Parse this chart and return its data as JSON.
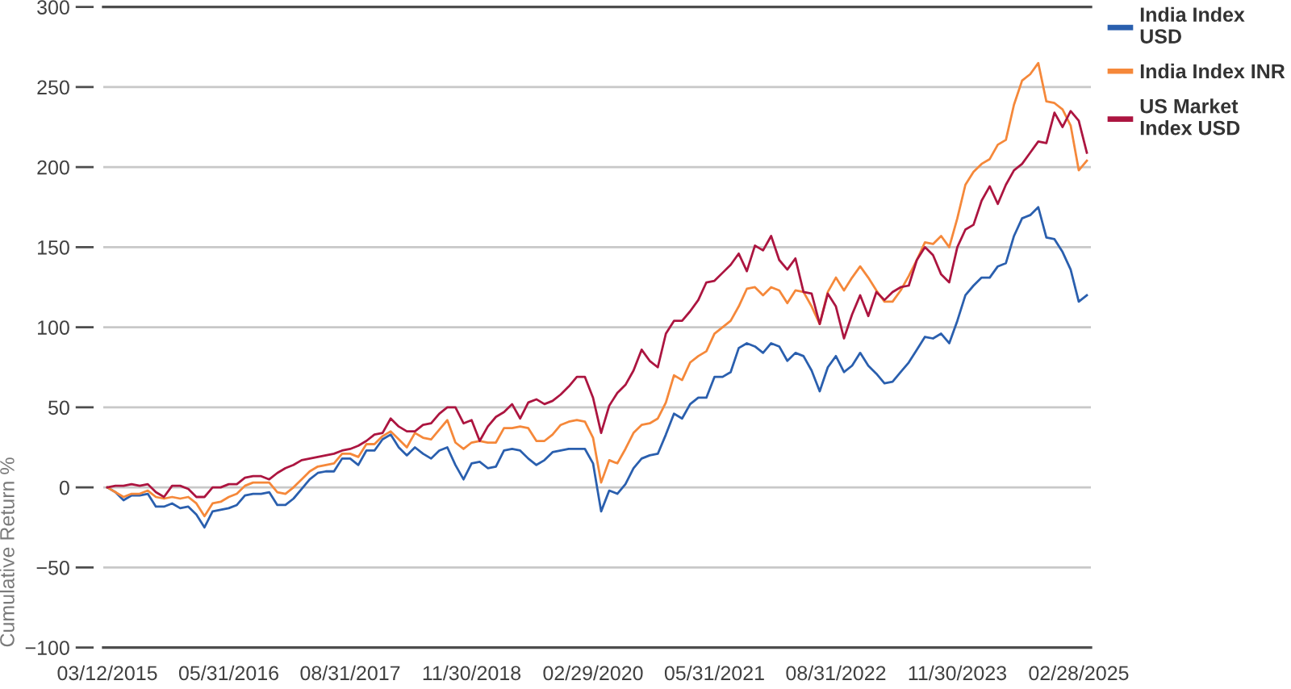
{
  "chart_data": {
    "type": "line",
    "ylabel": "Cumulative Return %",
    "categories": [
      "03/12/2015",
      null,
      null,
      null,
      null,
      null,
      null,
      null,
      null,
      null,
      null,
      null,
      null,
      null,
      null,
      "05/31/2016",
      null,
      null,
      null,
      null,
      null,
      null,
      null,
      null,
      null,
      null,
      null,
      null,
      null,
      null,
      "08/31/2017",
      null,
      null,
      null,
      null,
      null,
      null,
      null,
      null,
      null,
      null,
      null,
      null,
      null,
      null,
      "11/30/2018",
      null,
      null,
      null,
      null,
      null,
      null,
      null,
      null,
      null,
      null,
      null,
      null,
      null,
      null,
      "02/29/2020",
      null,
      null,
      null,
      null,
      null,
      null,
      null,
      null,
      null,
      null,
      null,
      null,
      null,
      null,
      "05/31/2021",
      null,
      null,
      null,
      null,
      null,
      null,
      null,
      null,
      null,
      null,
      null,
      null,
      null,
      null,
      "08/31/2022",
      null,
      null,
      null,
      null,
      null,
      null,
      null,
      null,
      null,
      null,
      null,
      null,
      null,
      null,
      "11/30/2023",
      null,
      null,
      null,
      null,
      null,
      null,
      null,
      null,
      null,
      null,
      null,
      null,
      null,
      null,
      "02/28/2025",
      null
    ],
    "ylim": [
      -100,
      300
    ],
    "yticks": [
      {
        "value": -100,
        "label": "−100"
      },
      {
        "value": -50,
        "label": "−50"
      },
      0,
      50,
      100,
      150,
      200,
      250,
      300
    ],
    "grid": "y",
    "legend": "top right",
    "series": [
      {
        "name": "India Index USD",
        "color": "#2a5fae",
        "values": [
          0,
          -3,
          -8,
          -5,
          -5,
          -4,
          -12,
          -12,
          -10,
          -13,
          -12,
          -17,
          -25,
          -15,
          -14,
          -13,
          -11,
          -5,
          -4,
          -4,
          -3,
          -11,
          -11,
          -7,
          -1,
          5,
          9,
          10,
          10,
          18,
          18,
          14,
          23,
          23,
          30,
          33,
          25,
          20,
          25,
          21,
          18,
          23,
          25,
          14,
          5,
          15,
          16,
          12,
          13,
          23,
          24,
          23,
          18,
          14,
          17,
          22,
          23,
          24,
          24,
          24,
          15,
          -15,
          -2,
          -4,
          2,
          12,
          18,
          20,
          21,
          33,
          46,
          43,
          52,
          56,
          56,
          69,
          69,
          72,
          87,
          90,
          88,
          84,
          90,
          88,
          79,
          84,
          82,
          73,
          60,
          75,
          82,
          72,
          76,
          84,
          76,
          71,
          65,
          66,
          72,
          78,
          86,
          94,
          93,
          96,
          90,
          104,
          120,
          126,
          131,
          131,
          138,
          140,
          157,
          168,
          170,
          175,
          156,
          155,
          147,
          136,
          116,
          120
        ]
      },
      {
        "name": "India Index INR",
        "color": "#f5883a",
        "values": [
          0,
          -3,
          -6,
          -4,
          -4,
          -2,
          -6,
          -7,
          -6,
          -7,
          -6,
          -10,
          -18,
          -10,
          -9,
          -6,
          -4,
          1,
          3,
          3,
          3,
          -3,
          -4,
          0,
          5,
          10,
          13,
          14,
          15,
          21,
          21,
          19,
          27,
          27,
          32,
          35,
          30,
          25,
          34,
          31,
          30,
          36,
          42,
          28,
          24,
          28,
          29,
          28,
          28,
          37,
          37,
          38,
          37,
          29,
          29,
          33,
          39,
          41,
          42,
          41,
          31,
          3,
          17,
          15,
          24,
          34,
          39,
          40,
          43,
          53,
          70,
          67,
          78,
          82,
          85,
          96,
          100,
          104,
          113,
          124,
          125,
          120,
          125,
          123,
          115,
          123,
          122,
          113,
          102,
          122,
          131,
          123,
          131,
          138,
          131,
          123,
          116,
          116,
          123,
          132,
          142,
          153,
          152,
          157,
          150,
          168,
          189,
          197,
          202,
          205,
          214,
          217,
          239,
          254,
          258,
          265,
          241,
          240,
          236,
          226,
          198,
          204
        ]
      },
      {
        "name": "US Market Index USD",
        "color": "#ac1540",
        "values": [
          0,
          1,
          1,
          2,
          1,
          2,
          -3,
          -6,
          1,
          1,
          -1,
          -6,
          -6,
          0,
          0,
          2,
          2,
          6,
          7,
          7,
          5,
          9,
          12,
          14,
          17,
          18,
          19,
          20,
          21,
          23,
          24,
          26,
          29,
          33,
          34,
          43,
          38,
          35,
          35,
          39,
          40,
          46,
          50,
          50,
          40,
          42,
          29,
          38,
          44,
          47,
          52,
          43,
          53,
          55,
          52,
          54,
          58,
          63,
          69,
          69,
          56,
          34,
          51,
          59,
          64,
          73,
          86,
          79,
          75,
          96,
          104,
          104,
          110,
          117,
          128,
          129,
          134,
          139,
          146,
          135,
          151,
          148,
          157,
          142,
          136,
          143,
          122,
          121,
          102,
          121,
          113,
          93,
          108,
          120,
          107,
          122,
          117,
          122,
          125,
          126,
          142,
          150,
          145,
          133,
          128,
          150,
          161,
          164,
          179,
          188,
          177,
          189,
          198,
          202,
          209,
          216,
          215,
          234,
          225,
          235,
          229,
          209
        ]
      }
    ]
  }
}
